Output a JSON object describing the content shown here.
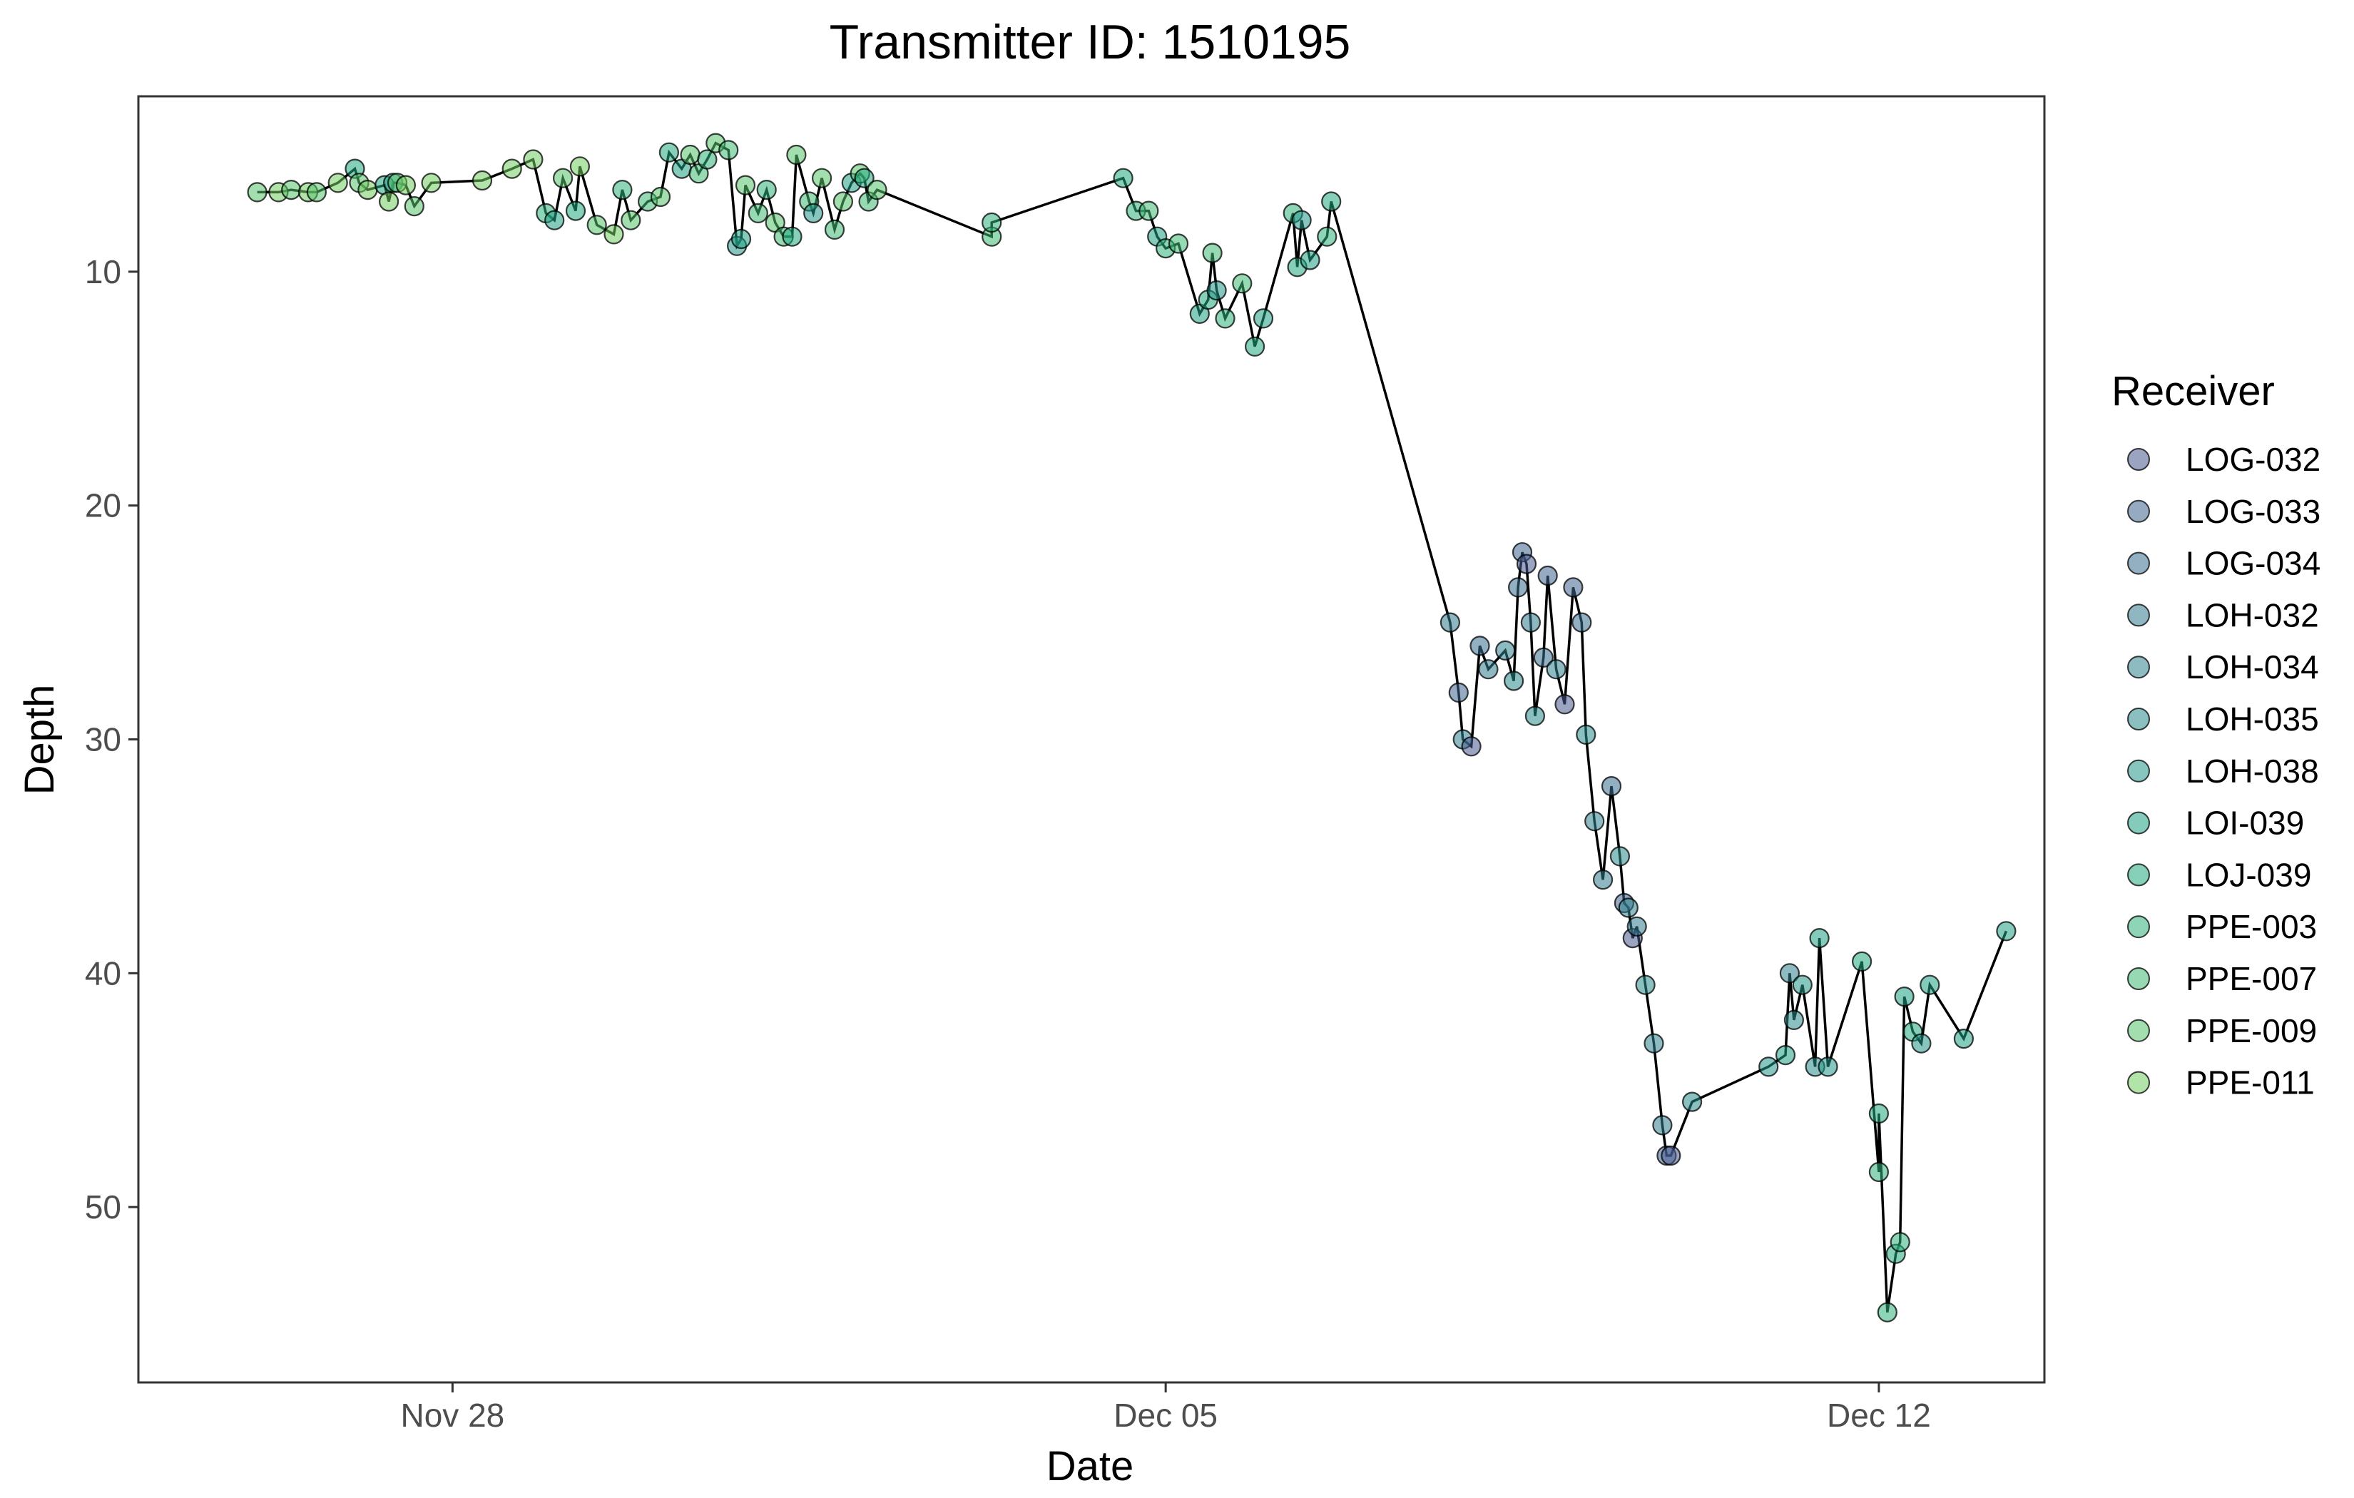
{
  "chart_data": {
    "type": "scatter",
    "title": "Transmitter ID: 1510195",
    "xlabel": "Date",
    "ylabel": "Depth",
    "x_type": "date",
    "x_ticks": [
      "Nov 28",
      "Dec 05",
      "Dec 12"
    ],
    "x_tick_values": [
      "2021-11-28",
      "2021-12-05",
      "2021-12-12"
    ],
    "xlim": [
      "2021-11-24T22:00",
      "2021-12-13T15:00"
    ],
    "ylim": [
      2.5,
      57.5
    ],
    "y_reversed": true,
    "y_ticks": [
      10,
      20,
      30,
      40,
      50
    ],
    "grid": false,
    "line": "connects all detections in time order (black)",
    "legend": {
      "title": "Receiver",
      "position": "right",
      "entries": [
        {
          "name": "LOG-032",
          "color": "#485b8f"
        },
        {
          "name": "LOG-033",
          "color": "#3f6690"
        },
        {
          "name": "LOG-034",
          "color": "#3a6f91"
        },
        {
          "name": "LOH-032",
          "color": "#337b8f"
        },
        {
          "name": "LOH-034",
          "color": "#2f838e"
        },
        {
          "name": "LOH-035",
          "color": "#2a8d8c"
        },
        {
          "name": "LOH-038",
          "color": "#259889"
        },
        {
          "name": "LOI-039",
          "color": "#21a085"
        },
        {
          "name": "LOJ-039",
          "color": "#22a97f"
        },
        {
          "name": "PPE-003",
          "color": "#30b27a"
        },
        {
          "name": "PPE-007",
          "color": "#40ba73"
        },
        {
          "name": "PPE-009",
          "color": "#57c46b"
        },
        {
          "name": "PPE-011",
          "color": "#72cc62"
        }
      ]
    },
    "series": [
      {
        "name": "PPE-011",
        "points": [
          [
            "2021-11-26T07:00",
            6.6
          ],
          [
            "2021-11-26T14:00",
            6.6
          ],
          [
            "2021-11-26T21:00",
            6.2
          ],
          [
            "2021-11-27T04:00",
            6.5
          ],
          [
            "2021-11-27T09:00",
            7.0
          ],
          [
            "2021-11-27T13:00",
            6.3
          ],
          [
            "2021-11-27T19:00",
            6.2
          ],
          [
            "2021-11-28T07:00",
            6.1
          ],
          [
            "2021-11-28T14:00",
            5.6
          ],
          [
            "2021-11-28T19:00",
            5.2
          ],
          [
            "2021-11-29T06:00",
            5.5
          ],
          [
            "2021-11-29T14:00",
            8.4
          ]
        ]
      },
      {
        "name": "PPE-009",
        "points": [
          [
            "2021-11-26T02:00",
            6.6
          ],
          [
            "2021-11-26T10:00",
            6.5
          ],
          [
            "2021-11-26T16:00",
            6.6
          ],
          [
            "2021-11-27T02:00",
            6.2
          ],
          [
            "2021-11-27T11:00",
            6.2
          ],
          [
            "2021-11-27T15:00",
            7.2
          ],
          [
            "2021-11-29T02:00",
            6.0
          ],
          [
            "2021-11-29T10:00",
            8.0
          ],
          [
            "2021-11-29T18:00",
            7.8
          ],
          [
            "2021-11-30T01:00",
            6.8
          ],
          [
            "2021-11-30T08:00",
            5.0
          ],
          [
            "2021-11-30T14:00",
            4.5
          ],
          [
            "2021-11-30T21:00",
            6.3
          ],
          [
            "2021-12-01T04:00",
            7.9
          ],
          [
            "2021-12-01T09:00",
            5.0
          ],
          [
            "2021-12-01T15:00",
            6.0
          ],
          [
            "2021-12-01T20:00",
            7.0
          ],
          [
            "2021-12-02T00:00",
            5.8
          ],
          [
            "2021-12-02T04:00",
            6.5
          ]
        ]
      },
      {
        "name": "PPE-007",
        "points": [
          [
            "2021-11-29T22:00",
            7.0
          ],
          [
            "2021-11-30T10:00",
            5.8
          ],
          [
            "2021-11-30T17:00",
            4.8
          ],
          [
            "2021-12-01T00:00",
            7.5
          ],
          [
            "2021-12-01T06:00",
            8.5
          ],
          [
            "2021-12-01T12:00",
            7.0
          ],
          [
            "2021-12-01T18:00",
            8.2
          ],
          [
            "2021-12-02T02:00",
            7.0
          ],
          [
            "2021-12-03T07:00",
            8.5
          ],
          [
            "2021-12-04T20:00",
            7.4
          ],
          [
            "2021-12-05T03:00",
            8.8
          ],
          [
            "2021-12-05T11:00",
            9.2
          ],
          [
            "2021-12-05T18:00",
            10.5
          ]
        ]
      },
      {
        "name": "PPE-003",
        "points": [
          [
            "2021-11-28T22:00",
            7.5
          ],
          [
            "2021-11-29T16:00",
            6.5
          ],
          [
            "2021-11-30T12:00",
            5.2
          ],
          [
            "2021-12-01T02:00",
            6.5
          ],
          [
            "2021-12-03T07:00",
            7.9
          ],
          [
            "2021-12-04T17:00",
            7.4
          ],
          [
            "2021-12-05T00:00",
            9.0
          ],
          [
            "2021-12-05T14:00",
            12.0
          ],
          [
            "2021-12-06T06:00",
            7.5
          ],
          [
            "2021-12-06T14:00",
            8.5
          ],
          [
            "2021-12-12T00:00",
            48.5
          ],
          [
            "2021-12-12T02:00",
            54.5
          ],
          [
            "2021-12-12T05:00",
            51.5
          ]
        ]
      },
      {
        "name": "LOJ-039",
        "points": [
          [
            "2021-11-27T01:00",
            5.6
          ],
          [
            "2021-11-27T08:00",
            6.3
          ],
          [
            "2021-11-29T05:00",
            7.4
          ],
          [
            "2021-11-30T03:00",
            4.9
          ],
          [
            "2021-12-01T08:00",
            8.5
          ],
          [
            "2021-12-02T01:00",
            6.0
          ],
          [
            "2021-12-04T14:00",
            6.0
          ],
          [
            "2021-12-05T10:00",
            11.2
          ],
          [
            "2021-12-05T21:00",
            13.2
          ],
          [
            "2021-12-06T07:00",
            9.8
          ],
          [
            "2021-12-06T15:00",
            7.0
          ],
          [
            "2021-12-11T20:00",
            39.5
          ],
          [
            "2021-12-12T00:00",
            46.0
          ],
          [
            "2021-12-12T04:00",
            52.0
          ],
          [
            "2021-12-12T08:00",
            42.5
          ]
        ]
      },
      {
        "name": "LOI-039",
        "points": [
          [
            "2021-11-27T10:00",
            6.2
          ],
          [
            "2021-11-29T00:00",
            7.8
          ],
          [
            "2021-11-30T06:00",
            5.6
          ],
          [
            "2021-11-30T20:00",
            8.6
          ],
          [
            "2021-12-01T22:00",
            6.2
          ],
          [
            "2021-12-04T22:00",
            8.5
          ],
          [
            "2021-12-05T08:00",
            11.8
          ],
          [
            "2021-12-05T23:00",
            12.0
          ],
          [
            "2021-12-06T10:00",
            9.5
          ],
          [
            "2021-12-11T02:00",
            43.5
          ],
          [
            "2021-12-11T10:00",
            38.5
          ],
          [
            "2021-12-12T06:00",
            41.0
          ],
          [
            "2021-12-12T12:00",
            40.5
          ],
          [
            "2021-12-12T20:00",
            42.8
          ],
          [
            "2021-12-13T06:00",
            38.2
          ]
        ]
      },
      {
        "name": "LOH-038",
        "points": [
          [
            "2021-11-30T19:00",
            8.9
          ],
          [
            "2021-12-01T13:00",
            7.5
          ],
          [
            "2021-12-05T12:00",
            10.8
          ],
          [
            "2021-12-06T08:00",
            7.8
          ],
          [
            "2021-12-10T22:00",
            44.0
          ],
          [
            "2021-12-11T06:00",
            40.5
          ],
          [
            "2021-12-11T12:00",
            44.0
          ],
          [
            "2021-12-12T10:00",
            43.0
          ]
        ]
      },
      {
        "name": "LOH-035",
        "points": [
          [
            "2021-12-08T10:00",
            27.5
          ],
          [
            "2021-12-08T15:00",
            29.0
          ],
          [
            "2021-12-09T03:00",
            29.8
          ],
          [
            "2021-12-09T11:00",
            35.0
          ],
          [
            "2021-12-09T17:00",
            40.5
          ],
          [
            "2021-12-10T04:00",
            45.5
          ],
          [
            "2021-12-11T04:00",
            42.0
          ],
          [
            "2021-12-11T09:00",
            44.0
          ]
        ]
      },
      {
        "name": "LOH-034",
        "points": [
          [
            "2021-12-07T22:00",
            30.0
          ],
          [
            "2021-12-08T08:00",
            26.2
          ],
          [
            "2021-12-08T20:00",
            27.0
          ],
          [
            "2021-12-09T05:00",
            33.5
          ],
          [
            "2021-12-09T13:00",
            37.2
          ],
          [
            "2021-12-09T19:00",
            43.0
          ],
          [
            "2021-12-11T03:00",
            40.0
          ]
        ]
      },
      {
        "name": "LOH-032",
        "points": [
          [
            "2021-12-07T19:00",
            25.0
          ],
          [
            "2021-12-08T04:00",
            27.0
          ],
          [
            "2021-12-08T14:00",
            25.0
          ],
          [
            "2021-12-09T07:00",
            36.0
          ],
          [
            "2021-12-09T15:00",
            38.0
          ],
          [
            "2021-12-09T21:00",
            46.5
          ]
        ]
      },
      {
        "name": "LOG-034",
        "points": [
          [
            "2021-12-08T02:00",
            26.0
          ],
          [
            "2021-12-08T11:00",
            23.5
          ],
          [
            "2021-12-08T17:00",
            26.5
          ],
          [
            "2021-12-09T02:00",
            25.0
          ],
          [
            "2021-12-09T09:00",
            32.0
          ]
        ]
      },
      {
        "name": "LOG-033",
        "points": [
          [
            "2021-12-07T21:00",
            28.0
          ],
          [
            "2021-12-08T12:00",
            22.0
          ],
          [
            "2021-12-08T18:00",
            23.0
          ],
          [
            "2021-12-09T00:00",
            23.5
          ],
          [
            "2021-12-09T12:00",
            37.0
          ],
          [
            "2021-12-09T22:00",
            47.8
          ]
        ]
      },
      {
        "name": "LOG-032",
        "points": [
          [
            "2021-12-08T00:00",
            30.3
          ],
          [
            "2021-12-08T13:00",
            22.5
          ],
          [
            "2021-12-08T22:00",
            28.5
          ],
          [
            "2021-12-09T14:00",
            38.5
          ],
          [
            "2021-12-09T23:00",
            47.8
          ]
        ]
      }
    ]
  }
}
